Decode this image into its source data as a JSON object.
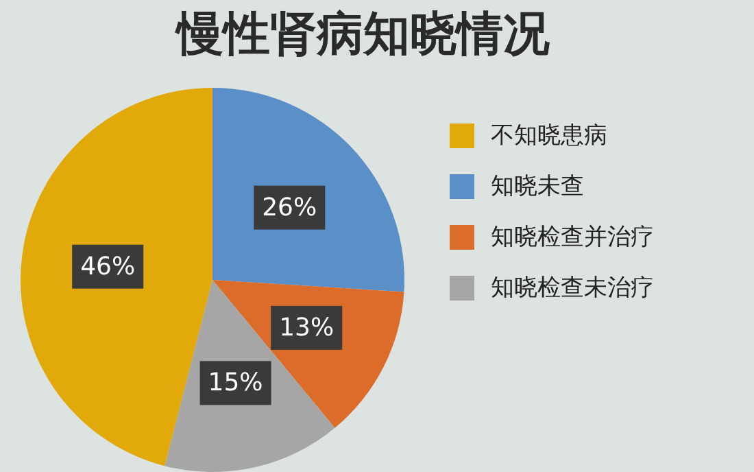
{
  "chart_data": {
    "type": "pie",
    "title": "慢性肾病知晓情况",
    "categories": [
      "不知晓患病",
      "知晓未查",
      "知晓检查并治疗",
      "知晓检查未治疗"
    ],
    "values": [
      46,
      26,
      13,
      15
    ],
    "colors": [
      "#e2a90a",
      "#5b8fc8",
      "#dc6c2a",
      "#a6a6a6"
    ],
    "value_labels": [
      "46%",
      "26%",
      "13%",
      "15%"
    ],
    "legend": "right"
  }
}
